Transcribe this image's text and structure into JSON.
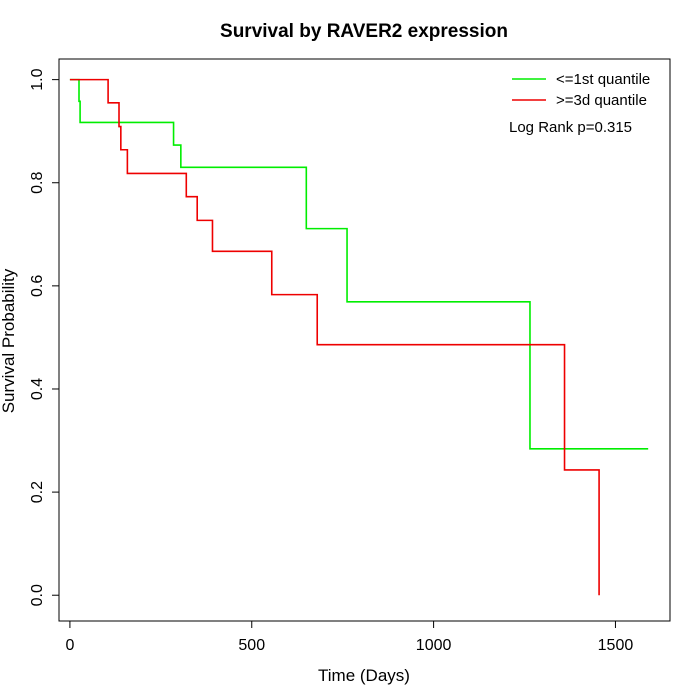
{
  "chart_data": {
    "type": "line",
    "title": "Survival by RAVER2 expression",
    "xlabel": "Time (Days)",
    "ylabel": "Survival Probability",
    "xlim": [
      -30,
      1650
    ],
    "ylim": [
      -0.05,
      1.04
    ],
    "xticks": [
      0,
      500,
      1000,
      1500
    ],
    "yticks": [
      0.0,
      0.2,
      0.4,
      0.6,
      0.8,
      1.0
    ],
    "xtick_labels": [
      "0",
      "500",
      "1000",
      "1500"
    ],
    "ytick_labels": [
      "0.0",
      "0.2",
      "0.4",
      "0.6",
      "0.8",
      "1.0"
    ],
    "grid": false,
    "legend_position": "top-right",
    "annotation": "Log Rank p=0.315",
    "series": [
      {
        "name": "<=1st quantile",
        "color": "#00ee00",
        "steps": [
          [
            0,
            1.0
          ],
          [
            25,
            0.958
          ],
          [
            28,
            0.917
          ],
          [
            285,
            0.873
          ],
          [
            305,
            0.83
          ],
          [
            650,
            0.711
          ],
          [
            762,
            0.569
          ],
          [
            1265,
            0.284
          ],
          [
            1590,
            0.284
          ]
        ]
      },
      {
        "name": ">=3d quantile",
        "color": "#ee0000",
        "steps": [
          [
            0,
            1.0
          ],
          [
            105,
            0.955
          ],
          [
            135,
            0.909
          ],
          [
            140,
            0.864
          ],
          [
            158,
            0.818
          ],
          [
            320,
            0.773
          ],
          [
            350,
            0.727
          ],
          [
            392,
            0.667
          ],
          [
            555,
            0.583
          ],
          [
            680,
            0.486
          ],
          [
            1360,
            0.243
          ],
          [
            1455,
            0.0
          ]
        ]
      }
    ]
  }
}
